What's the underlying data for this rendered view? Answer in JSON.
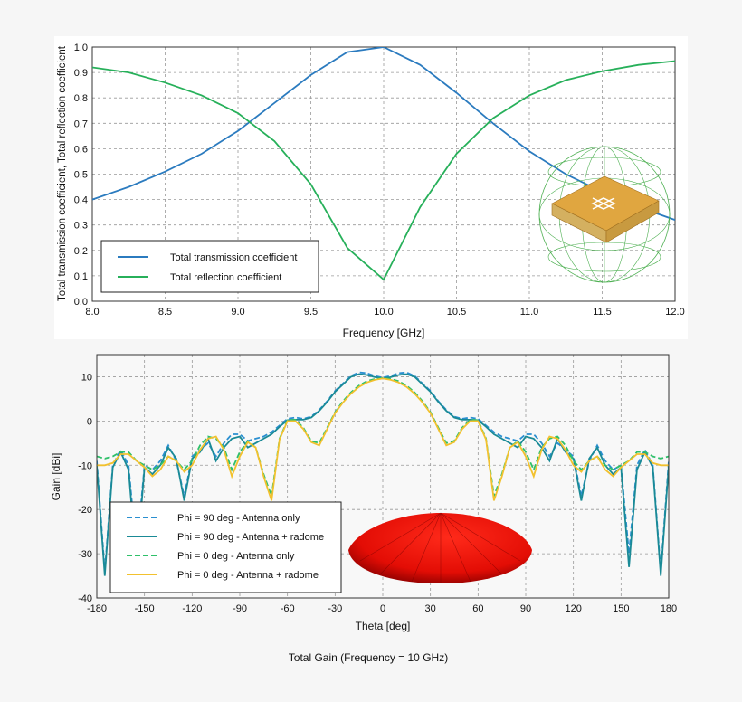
{
  "chart_data": [
    {
      "type": "line",
      "xlabel": "Frequency [GHz]",
      "ylabel": "Total transmission coefficient, Total reflection coefficient",
      "xlim": [
        8.0,
        12.0
      ],
      "ylim": [
        0.0,
        1.0
      ],
      "xticks": [
        "8.0",
        "8.5",
        "9.0",
        "9.5",
        "10.0",
        "10.5",
        "11.0",
        "11.5",
        "12.0"
      ],
      "yticks": [
        "0.0",
        "0.1",
        "0.2",
        "0.3",
        "0.4",
        "0.5",
        "0.6",
        "0.7",
        "0.8",
        "0.9",
        "1.0"
      ],
      "grid": true,
      "legend": "bottom-left",
      "x": [
        8.0,
        8.25,
        8.5,
        8.75,
        9.0,
        9.25,
        9.5,
        9.75,
        10.0,
        10.25,
        10.5,
        10.75,
        11.0,
        11.25,
        11.5,
        11.75,
        12.0
      ],
      "series": [
        {
          "name": "Total transmission coefficient",
          "color": "#2b7bbf",
          "dash": false,
          "values": [
            0.4,
            0.45,
            0.51,
            0.58,
            0.67,
            0.78,
            0.89,
            0.98,
            1.0,
            0.93,
            0.82,
            0.7,
            0.59,
            0.5,
            0.43,
            0.37,
            0.32
          ]
        },
        {
          "name": "Total reflection coefficient",
          "color": "#27b05a",
          "dash": false,
          "values": [
            0.92,
            0.9,
            0.86,
            0.81,
            0.74,
            0.63,
            0.46,
            0.21,
            0.085,
            0.37,
            0.58,
            0.72,
            0.81,
            0.87,
            0.905,
            0.93,
            0.945
          ]
        }
      ]
    },
    {
      "type": "line",
      "title": "Total Gain (Frequency = 10 GHz)",
      "xlabel": "Theta [deg]",
      "ylabel": "Gain [dBi]",
      "xlim": [
        -180,
        180
      ],
      "ylim": [
        -40,
        15
      ],
      "xticks": [
        "-180",
        "-150",
        "-120",
        "-90",
        "-60",
        "-30",
        "0",
        "30",
        "60",
        "90",
        "120",
        "150",
        "180"
      ],
      "yticks": [
        "-40",
        "-30",
        "-20",
        "-10",
        "0",
        "10"
      ],
      "grid": true,
      "legend": "bottom-left",
      "x": [
        -180,
        -175,
        -170,
        -165,
        -160,
        -155,
        -150,
        -145,
        -140,
        -135,
        -130,
        -125,
        -120,
        -115,
        -110,
        -105,
        -100,
        -95,
        -90,
        -85,
        -80,
        -75,
        -70,
        -65,
        -60,
        -55,
        -50,
        -45,
        -40,
        -35,
        -30,
        -25,
        -20,
        -15,
        -10,
        -5,
        0,
        5,
        10,
        15,
        20,
        25,
        30,
        35,
        40,
        45,
        50,
        55,
        60,
        65,
        70,
        75,
        80,
        85,
        90,
        95,
        100,
        105,
        110,
        115,
        120,
        125,
        130,
        135,
        140,
        145,
        150,
        155,
        160,
        165,
        170,
        175,
        180
      ],
      "series": [
        {
          "name": "Phi = 90 deg - Antenna only",
          "color": "#2a8fd0",
          "dash": true,
          "values": [
            -9,
            -34,
            -10,
            -6.5,
            -10,
            -30,
            -10,
            -11,
            -9,
            -5.5,
            -9,
            -17,
            -8,
            -6.5,
            -5,
            -8,
            -5,
            -3,
            -3,
            -4.5,
            -4,
            -3.5,
            -2.5,
            -1,
            0.5,
            0.8,
            0.5,
            1,
            2.5,
            4.5,
            6.8,
            8.5,
            10.2,
            11,
            10.8,
            10.2,
            9.8,
            10.2,
            10.8,
            11,
            10.2,
            8.5,
            6.8,
            4.5,
            2.5,
            1,
            0.5,
            0.8,
            0.5,
            -1,
            -2.5,
            -3.5,
            -4,
            -4.5,
            -3,
            -3,
            -5,
            -8,
            -5,
            -6.5,
            -8,
            -17,
            -9,
            -5.5,
            -9,
            -11,
            -10,
            -30,
            -10,
            -6.5,
            -10,
            -34,
            -9
          ]
        },
        {
          "name": "Phi = 90 deg - Antenna + radome",
          "color": "#1a8a96",
          "dash": false,
          "values": [
            -10,
            -35,
            -10.5,
            -7,
            -11,
            -33,
            -10.5,
            -12,
            -10,
            -6,
            -8.5,
            -18,
            -8.5,
            -7,
            -4,
            -9,
            -6,
            -4,
            -3.5,
            -6,
            -5,
            -4,
            -3,
            -1.3,
            0.2,
            0.3,
            0.3,
            0.8,
            2.3,
            4.3,
            6.6,
            8.3,
            10,
            10.6,
            10.4,
            9.9,
            9.6,
            9.9,
            10.4,
            10.6,
            10,
            8.3,
            6.6,
            4.3,
            2.3,
            0.8,
            0.3,
            0.3,
            0.2,
            -1.3,
            -3,
            -4,
            -5,
            -6,
            -3.5,
            -4,
            -6,
            -9,
            -4,
            -7,
            -8.5,
            -18,
            -8.5,
            -6,
            -10,
            -12,
            -10.5,
            -33,
            -11,
            -7,
            -10.5,
            -35,
            -10
          ]
        },
        {
          "name": "Phi = 0 deg - Antenna only",
          "color": "#2fc06a",
          "dash": true,
          "values": [
            -8,
            -8.5,
            -8,
            -7,
            -7,
            -9,
            -10,
            -11,
            -10,
            -8,
            -9,
            -11,
            -9,
            -5.5,
            -3.5,
            -4,
            -6,
            -11,
            -7,
            -4.5,
            -6,
            -12,
            -17,
            -4,
            0.2,
            0.3,
            -1.5,
            -4.5,
            -5,
            -1.5,
            2,
            4.5,
            6.5,
            8,
            9,
            9.5,
            9.7,
            9.5,
            9,
            8,
            6.5,
            4.5,
            2,
            -1.5,
            -5,
            -4.5,
            -1.5,
            0.3,
            0.2,
            -4,
            -17,
            -12,
            -6,
            -4.5,
            -7,
            -11,
            -6,
            -4,
            -3.5,
            -5.5,
            -9,
            -11,
            -9,
            -8,
            -10,
            -11,
            -10,
            -9,
            -7,
            -7,
            -8,
            -8.5,
            -8
          ]
        },
        {
          "name": "Phi = 0 deg - Antenna + radome",
          "color": "#f2c12e",
          "dash": false,
          "values": [
            -10,
            -10,
            -9.5,
            -7.5,
            -7.5,
            -9,
            -10.5,
            -12.5,
            -11,
            -8,
            -9,
            -11.5,
            -10,
            -6.5,
            -4,
            -3.5,
            -6.5,
            -12.5,
            -8,
            -4.8,
            -6,
            -12.5,
            -18,
            -4.2,
            0,
            0,
            -1.8,
            -4.8,
            -5.5,
            -1.8,
            1.8,
            4.2,
            6.2,
            7.7,
            8.7,
            9.3,
            9.6,
            9.3,
            8.7,
            7.7,
            6.2,
            4.2,
            1.8,
            -1.8,
            -5.5,
            -4.8,
            -1.8,
            0,
            0,
            -4.2,
            -18,
            -12.5,
            -6,
            -4.8,
            -8,
            -12.5,
            -6.5,
            -3.5,
            -4,
            -6.5,
            -10,
            -11.5,
            -9,
            -8,
            -11,
            -12.5,
            -10.5,
            -9,
            -7.5,
            -7.5,
            -9.5,
            -10,
            -10
          ]
        }
      ]
    }
  ],
  "insets": {
    "top_chart_image": "antenna-in-radome-wireframe",
    "bottom_chart_image": "red-radiation-dome"
  }
}
